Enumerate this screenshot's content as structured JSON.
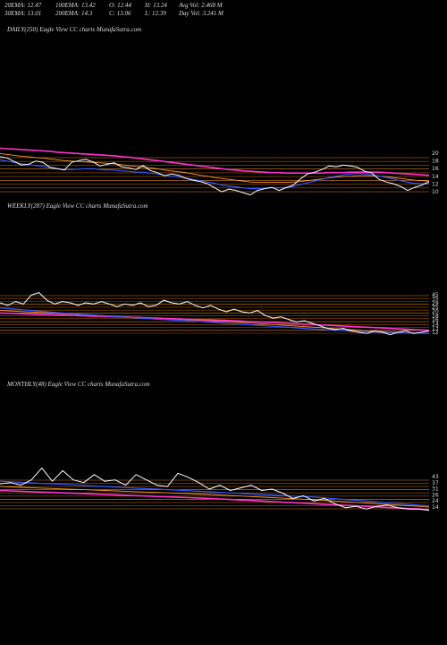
{
  "header": {
    "row1": {
      "ema20": "20EMA: 12.47",
      "ema100": "100EMA: 13.42",
      "open": "O: 12.44",
      "high": "H: 13.24",
      "avgvol": "Avg Vol: 2.468 M"
    },
    "row2": {
      "ema30": "30EMA: 13.01",
      "ema200": "200EMA: 14.3",
      "close": "C: 13.06",
      "low": "L: 12.39",
      "dayvol": "Day Vol: 3.241 M"
    }
  },
  "colors": {
    "background": "#000000",
    "price": "#ffffff",
    "ema_blue": "#3355ff",
    "ema_magenta": "#ff33cc",
    "ema_orange": "#ff9933",
    "grid_orange": "#cc6600"
  },
  "chart_data": [
    {
      "type": "line",
      "title": "DAILY(250) Eagle View CC charts MunafaSutra.com",
      "y_ticks": [
        "20",
        "18",
        "16",
        "14",
        "12",
        "10"
      ],
      "ylim": [
        9,
        21.5
      ],
      "series": [
        {
          "role": "price",
          "values": [
            18.5,
            18.2,
            17.4,
            16.6,
            16.8,
            17.5,
            17.2,
            16.1,
            15.8,
            15.5,
            17.2,
            17.6,
            17.9,
            17.3,
            16.4,
            16.8,
            17.1,
            16.2,
            16.0,
            15.6,
            16.5,
            15.4,
            14.9,
            14.2,
            14.6,
            14.3,
            13.6,
            13.2,
            12.9,
            12.4,
            11.5,
            10.6,
            11.2,
            10.9,
            10.4,
            9.9,
            10.9,
            11.3,
            11.6,
            10.9,
            11.5,
            12.1,
            13.5,
            14.6,
            15.0,
            15.6,
            16.4,
            16.2,
            16.6,
            16.4,
            16.1,
            15.2,
            14.8,
            13.4,
            12.8,
            12.4,
            11.8,
            10.9,
            11.6,
            12.1,
            12.9
          ]
        },
        {
          "role": "ema_blue",
          "values": [
            17.8,
            17.5,
            17.2,
            16.9,
            16.7,
            16.5,
            16.3,
            16.0,
            15.8,
            15.6,
            15.6,
            15.7,
            15.8,
            15.8,
            15.6,
            15.5,
            15.5,
            15.3,
            15.2,
            15.0,
            15.0,
            14.8,
            14.6,
            14.3,
            14.1,
            13.9,
            13.7,
            13.4,
            13.1,
            12.8,
            12.5,
            12.1,
            11.9,
            11.7,
            11.5,
            11.3,
            11.3,
            11.4,
            11.5,
            11.5,
            11.6,
            11.8,
            12.2,
            12.6,
            13.0,
            13.4,
            13.8,
            14.1,
            14.4,
            14.6,
            14.7,
            14.6,
            14.4,
            14.1,
            13.8,
            13.5,
            13.1,
            12.7,
            12.5,
            12.4,
            12.5
          ]
        },
        {
          "role": "ema_magenta",
          "values": [
            20.4,
            20.3,
            20.2,
            20.1,
            20.0,
            19.9,
            19.8,
            19.7,
            19.5,
            19.4,
            19.3,
            19.2,
            19.1,
            19.0,
            18.9,
            18.8,
            18.7,
            18.5,
            18.4,
            18.2,
            18.0,
            17.8,
            17.6,
            17.4,
            17.2,
            17.0,
            16.8,
            16.6,
            16.4,
            16.2,
            16.0,
            15.8,
            15.6,
            15.5,
            15.3,
            15.2,
            15.1,
            15.0,
            14.9,
            14.9,
            14.8,
            14.8,
            14.8,
            14.8,
            14.8,
            14.8,
            14.9,
            14.9,
            14.9,
            15.0,
            15.0,
            15.0,
            15.0,
            15.0,
            14.9,
            14.8,
            14.7,
            14.6,
            14.5,
            14.4,
            14.3
          ]
        },
        {
          "role": "ema_orange",
          "values": [
            19.2,
            19.0,
            18.8,
            18.6,
            18.5,
            18.3,
            18.2,
            18.0,
            17.8,
            17.6,
            17.5,
            17.4,
            17.3,
            17.2,
            17.1,
            17.0,
            16.9,
            16.7,
            16.5,
            16.3,
            16.2,
            16.0,
            15.8,
            15.5,
            15.3,
            15.1,
            14.9,
            14.6,
            14.3,
            14.1,
            13.8,
            13.6,
            13.4,
            13.2,
            13.0,
            12.8,
            12.7,
            12.7,
            12.7,
            12.7,
            12.7,
            12.8,
            12.9,
            13.1,
            13.3,
            13.5,
            13.7,
            13.9,
            14.0,
            14.1,
            14.2,
            14.2,
            14.2,
            14.1,
            14.0,
            13.8,
            13.6,
            13.4,
            13.2,
            13.1,
            13.0
          ]
        }
      ]
    },
    {
      "type": "line",
      "title": "WEEKLY(287) Eagle View CC charts MunafaSutra.com",
      "y_ticks": [
        "45",
        "35",
        "29",
        "25",
        "20",
        "18",
        "16",
        "14",
        "13",
        "12"
      ],
      "ylim": [
        10,
        52
      ],
      "series": [
        {
          "role": "price",
          "values": [
            38,
            36,
            39,
            37,
            44,
            46,
            40,
            37,
            39,
            38,
            36,
            38,
            37,
            39,
            37,
            35,
            37,
            36,
            38,
            35,
            36,
            40,
            38,
            37,
            39,
            36,
            34,
            36,
            33,
            31,
            33,
            31,
            30,
            32,
            28,
            26,
            27,
            25,
            23,
            24,
            22,
            20,
            18,
            17,
            18,
            16,
            15,
            14,
            16,
            15,
            13,
            15,
            16,
            14,
            15,
            16
          ]
        },
        {
          "role": "ema_blue",
          "values": [
            34,
            33.5,
            33,
            32.5,
            32,
            31.5,
            31,
            30.5,
            30,
            29.6,
            29.2,
            28.8,
            28.4,
            28,
            27.6,
            27.2,
            26.8,
            26.4,
            26,
            25.6,
            25.2,
            24.9,
            24.6,
            24.3,
            24,
            23.6,
            23.2,
            22.8,
            22.4,
            22,
            21.6,
            21.2,
            20.8,
            20.4,
            20,
            19.6,
            19.2,
            18.8,
            18.4,
            18,
            17.6,
            17.2,
            16.8,
            16.5,
            16.2,
            15.9,
            15.6,
            15.3,
            15.1,
            14.9,
            14.7,
            14.5,
            14.4,
            14.3,
            14.2,
            14.1
          ]
        },
        {
          "role": "ema_magenta",
          "values": [
            30,
            29.8,
            29.6,
            29.4,
            29.2,
            29,
            28.8,
            28.6,
            28.4,
            28.2,
            28,
            27.8,
            27.6,
            27.4,
            27.2,
            27,
            26.8,
            26.6,
            26.4,
            26.2,
            26,
            25.8,
            25.6,
            25.4,
            25.2,
            25,
            24.8,
            24.6,
            24.4,
            24.2,
            24,
            23.7,
            23.4,
            23.1,
            22.8,
            22.5,
            22.2,
            21.9,
            21.6,
            21.3,
            21,
            20.7,
            20.4,
            20.1,
            19.8,
            19.5,
            19.2,
            18.9,
            18.6,
            18.3,
            18,
            17.7,
            17.4,
            17.1,
            16.8,
            16.5
          ]
        },
        {
          "role": "ema_orange",
          "values": [
            32,
            31.7,
            31.4,
            31.1,
            30.8,
            30.5,
            30.2,
            29.9,
            29.6,
            29.3,
            29,
            28.7,
            28.4,
            28.1,
            27.8,
            27.5,
            27.2,
            26.9,
            26.6,
            26.3,
            26,
            25.7,
            25.4,
            25.1,
            24.8,
            24.5,
            24.2,
            23.9,
            23.6,
            23.3,
            23,
            22.6,
            22.2,
            21.8,
            21.4,
            21,
            20.6,
            20.2,
            19.8,
            19.4,
            19,
            18.6,
            18.2,
            17.8,
            17.4,
            17,
            16.6,
            16.2,
            15.8,
            15.5,
            15.2,
            14.9,
            14.6,
            14.4,
            14.2,
            14
          ]
        }
      ]
    },
    {
      "type": "line",
      "title": "MONTHLY(48) Eagle View CC charts MunafaSutra.com",
      "y_ticks": [
        "43",
        "37",
        "31",
        "26",
        "24",
        "14"
      ],
      "ylim": [
        8,
        50
      ],
      "series": [
        {
          "role": "price",
          "values": [
            35,
            36,
            34,
            38,
            47,
            37,
            45,
            38,
            36,
            42,
            37,
            38,
            34,
            42,
            38,
            34,
            33,
            43,
            40,
            36,
            31,
            34,
            30,
            32,
            34,
            30,
            31,
            28,
            24,
            26,
            22,
            24,
            20,
            17,
            18,
            16,
            18,
            19,
            17,
            16,
            16,
            15
          ]
        },
        {
          "role": "ema_blue",
          "values": [
            37,
            36.6,
            36.2,
            35.8,
            35.4,
            35,
            34.6,
            34.2,
            33.8,
            33.4,
            33,
            32.6,
            32.2,
            31.8,
            31.4,
            31,
            30.6,
            30.2,
            29.8,
            29.4,
            29,
            28.6,
            28.2,
            27.8,
            27.4,
            27,
            26.6,
            26.2,
            25.8,
            25.4,
            25,
            24.4,
            23.8,
            23.2,
            22.6,
            22,
            21.4,
            20.8,
            20.2,
            19.6,
            19,
            18.4
          ]
        },
        {
          "role": "ema_magenta",
          "values": [
            30,
            29.7,
            29.4,
            29.1,
            28.8,
            28.5,
            28.2,
            27.9,
            27.6,
            27.3,
            27,
            26.7,
            26.4,
            26.1,
            25.8,
            25.5,
            25.2,
            24.9,
            24.6,
            24.3,
            24,
            23.6,
            23.2,
            22.8,
            22.4,
            22,
            21.6,
            21.2,
            20.8,
            20.4,
            20,
            19.6,
            19.2,
            18.8,
            18.4,
            18,
            17.6,
            17.2,
            16.8,
            16.4,
            16,
            15.6
          ]
        },
        {
          "role": "ema_orange",
          "values": [
            33,
            32.7,
            32.4,
            32.1,
            31.8,
            31.5,
            31.2,
            30.9,
            30.6,
            30.3,
            30,
            29.7,
            29.4,
            29.1,
            28.8,
            28.5,
            28.2,
            27.9,
            27.6,
            27.3,
            27,
            26.6,
            26.2,
            25.8,
            25.4,
            25,
            24.6,
            24.2,
            23.8,
            23.4,
            23,
            22.5,
            22,
            21.5,
            21,
            20.5,
            20,
            19.5,
            19,
            18.5,
            18,
            17.5
          ]
        }
      ]
    }
  ]
}
